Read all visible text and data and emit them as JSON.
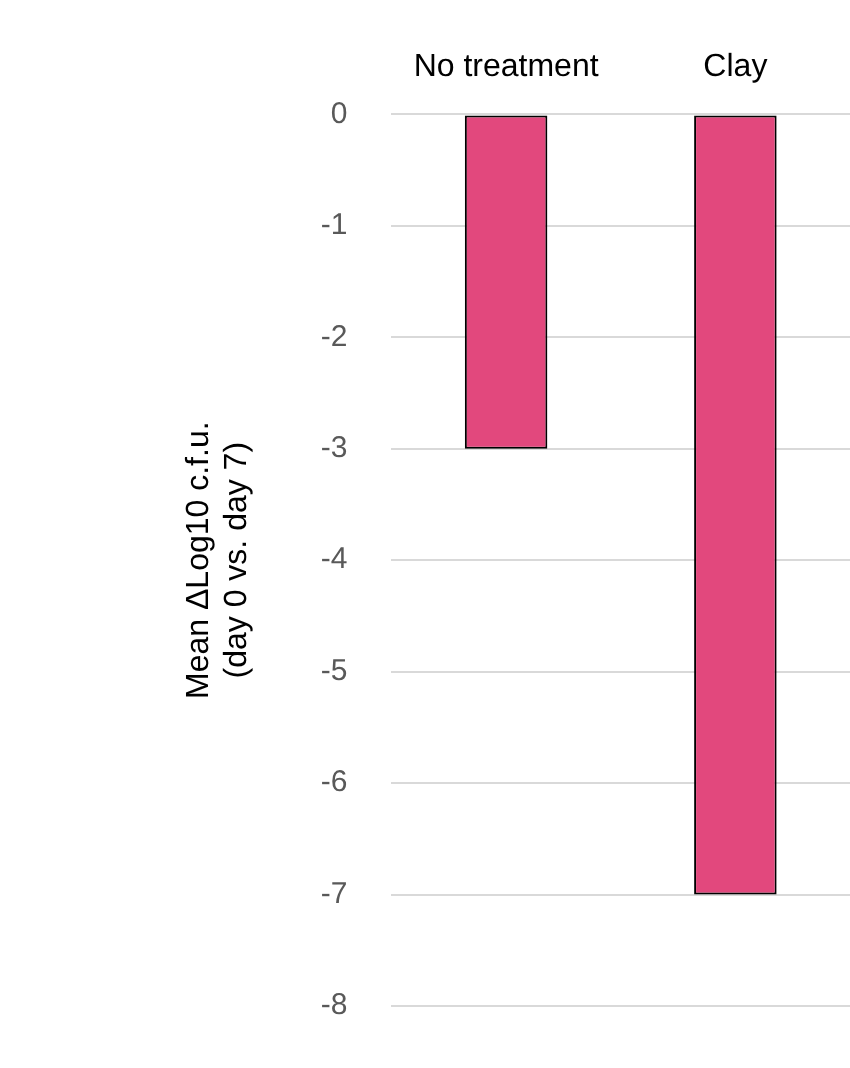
{
  "chart_data": {
    "type": "bar",
    "ylabel": "Mean ΔLog10 c.f.u.\n(day 0 vs. day 7)",
    "categories": [
      "No treatment",
      "Clay"
    ],
    "values": [
      -3,
      -7
    ],
    "color": "#e2487d",
    "ylim": [
      -8,
      0
    ],
    "yticks": [
      0,
      -1,
      -2,
      -3,
      -4,
      -5,
      -6,
      -7,
      -8
    ],
    "grid": "y",
    "legend": false
  }
}
